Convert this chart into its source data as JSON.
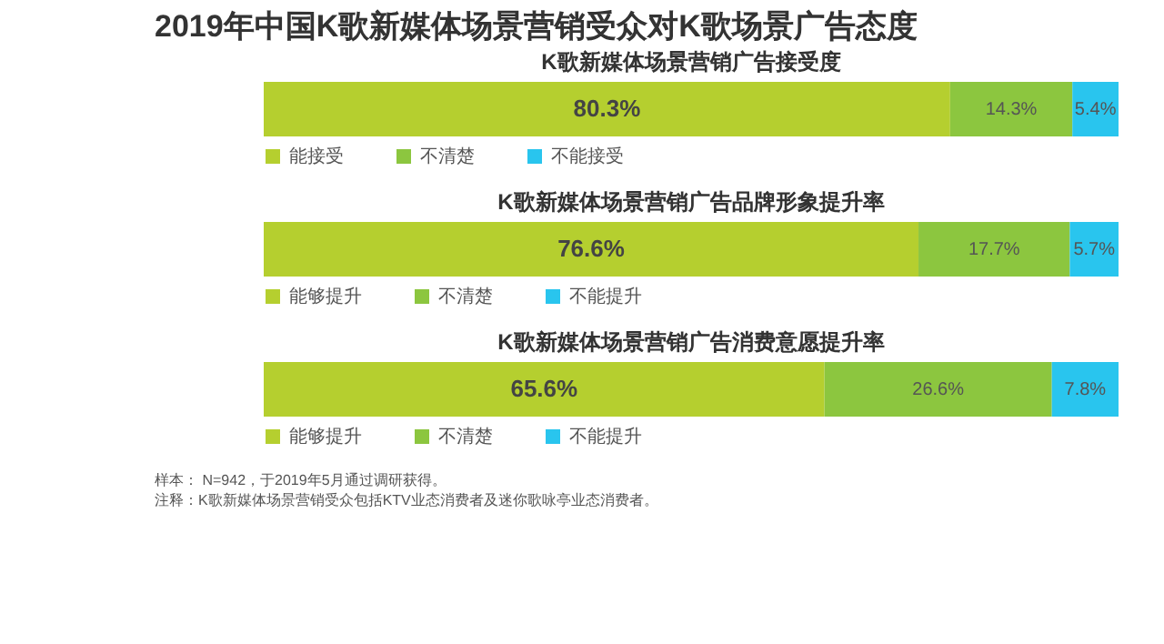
{
  "chart_data": [
    {
      "type": "bar",
      "orientation": "horizontal",
      "stacked": true,
      "legend": "bottom",
      "title": "2019年中国K歌新媒体场景营销受众对K歌场景广告态度",
      "subtitle": "K歌新媒体场景营销广告接受度",
      "categories": [
        null
      ],
      "series": [
        {
          "name": "能接受",
          "color": "#b5cf2f",
          "values": [
            80.3
          ],
          "value_labels": [
            "80.3%"
          ]
        },
        {
          "name": "不清楚",
          "color": "#8cc63f",
          "values": [
            14.3
          ],
          "value_labels": [
            "14.3%"
          ]
        },
        {
          "name": "不能接受",
          "color": "#29c5ee",
          "values": [
            5.4
          ],
          "value_labels": [
            "5.4%"
          ]
        }
      ]
    },
    {
      "type": "bar",
      "orientation": "horizontal",
      "stacked": true,
      "legend": "bottom",
      "title": "K歌新媒体场景营销广告品牌形象提升率",
      "categories": [
        null
      ],
      "series": [
        {
          "name": "能够提升",
          "color": "#b5cf2f",
          "values": [
            76.6
          ],
          "value_labels": [
            "76.6%"
          ]
        },
        {
          "name": "不清楚",
          "color": "#8cc63f",
          "values": [
            17.7
          ],
          "value_labels": [
            "17.7%"
          ]
        },
        {
          "name": "不能提升",
          "color": "#29c5ee",
          "values": [
            5.7
          ],
          "value_labels": [
            "5.7%"
          ]
        }
      ]
    },
    {
      "type": "bar",
      "orientation": "horizontal",
      "stacked": true,
      "legend": "bottom",
      "title": "K歌新媒体场景营销广告消费意愿提升率",
      "categories": [
        null
      ],
      "series": [
        {
          "name": "能够提升",
          "color": "#b5cf2f",
          "values": [
            65.6
          ],
          "value_labels": [
            "65.6%"
          ]
        },
        {
          "name": "不清楚",
          "color": "#8cc63f",
          "values": [
            26.6
          ],
          "value_labels": [
            "26.6%"
          ]
        },
        {
          "name": "不能提升",
          "color": "#29c5ee",
          "values": [
            7.8
          ],
          "value_labels": [
            "7.8%"
          ]
        }
      ],
      "annotations": [
        "样本： N=942，于2019年5月通过调研获得。",
        "注释：K歌新媒体场景营销受众包括KTV业态消费者及迷你歌咏亭业态消费者。"
      ]
    }
  ]
}
